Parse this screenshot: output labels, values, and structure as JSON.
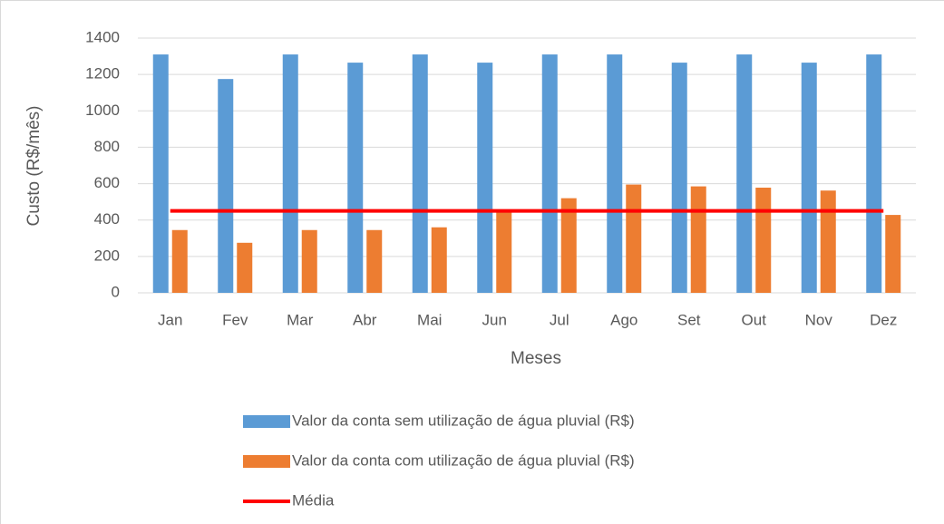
{
  "chart_data": {
    "type": "bar",
    "y_label": "Custo (R$/mês)",
    "x_label": "Meses",
    "categories": [
      "Jan",
      "Fev",
      "Mar",
      "Abr",
      "Mai",
      "Jun",
      "Jul",
      "Ago",
      "Set",
      "Out",
      "Nov",
      "Dez"
    ],
    "series": [
      {
        "name": "Valor da conta sem utilização de água pluvial (R$)",
        "color": "#5b9bd5",
        "mark": "bar",
        "values": [
          1310,
          1175,
          1310,
          1265,
          1310,
          1265,
          1310,
          1310,
          1265,
          1310,
          1265,
          1310
        ]
      },
      {
        "name": "Valor da conta com utilização de água pluvial (R$)",
        "color": "#ed7d31",
        "mark": "bar",
        "values": [
          345,
          275,
          345,
          345,
          360,
          455,
          520,
          595,
          585,
          578,
          562,
          428
        ]
      },
      {
        "name": "Média",
        "color": "#ff0000",
        "mark": "line",
        "values": [
          450,
          450,
          450,
          450,
          450,
          450,
          450,
          450,
          450,
          450,
          450,
          450
        ]
      }
    ],
    "ylim": [
      0,
      1400
    ],
    "yticks": [
      0,
      200,
      400,
      600,
      800,
      1000,
      1200,
      1400
    ],
    "grid": true,
    "legend": "bottom"
  }
}
